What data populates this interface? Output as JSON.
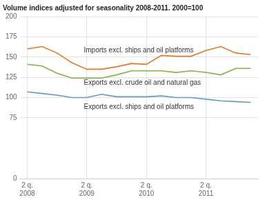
{
  "chart_data": {
    "type": "line",
    "title": "Volume indices adjusted for seasonality 2008-2011. 2000=100",
    "categories": [
      "2 q.\n2008",
      null,
      null,
      null,
      "2 q.\n2009",
      null,
      null,
      null,
      "2 q.\n2010",
      null,
      null,
      null,
      "2 q.\n2011",
      null,
      null,
      null
    ],
    "series": [
      {
        "name": "Imports excl. ships and oil platforms",
        "color": "#E87722",
        "values": [
          160,
          163,
          155,
          143,
          135,
          135,
          138,
          142,
          141,
          152,
          151,
          151,
          158,
          163,
          155,
          153
        ]
      },
      {
        "name": "Exports excl. crude oil and natural gas",
        "color": "#7AB648",
        "values": [
          141,
          139,
          130,
          124,
          124,
          124,
          128,
          133,
          133,
          133,
          131,
          133,
          131,
          128,
          136,
          136
        ]
      },
      {
        "name": "Exports excl. ships and oil platforms",
        "color": "#5B9BD5",
        "values": [
          107,
          105,
          103,
          100,
          100,
          104,
          101,
          101,
          101,
          102,
          100,
          100,
          98,
          96,
          95,
          94
        ]
      }
    ],
    "annotations": [
      {
        "x": 3.8,
        "y": 158,
        "text": "Imports excl. ships and oil platforms"
      },
      {
        "x": 3.8,
        "y": 118,
        "text": "Exports excl. crude oil and natural gas"
      },
      {
        "x": 3.8,
        "y": 88,
        "text": "Exports excl. ships and oil platforms"
      }
    ],
    "ylim": [
      0,
      200
    ],
    "yticks": [
      0,
      75,
      100,
      125,
      150,
      175,
      200
    ],
    "grid": true
  }
}
